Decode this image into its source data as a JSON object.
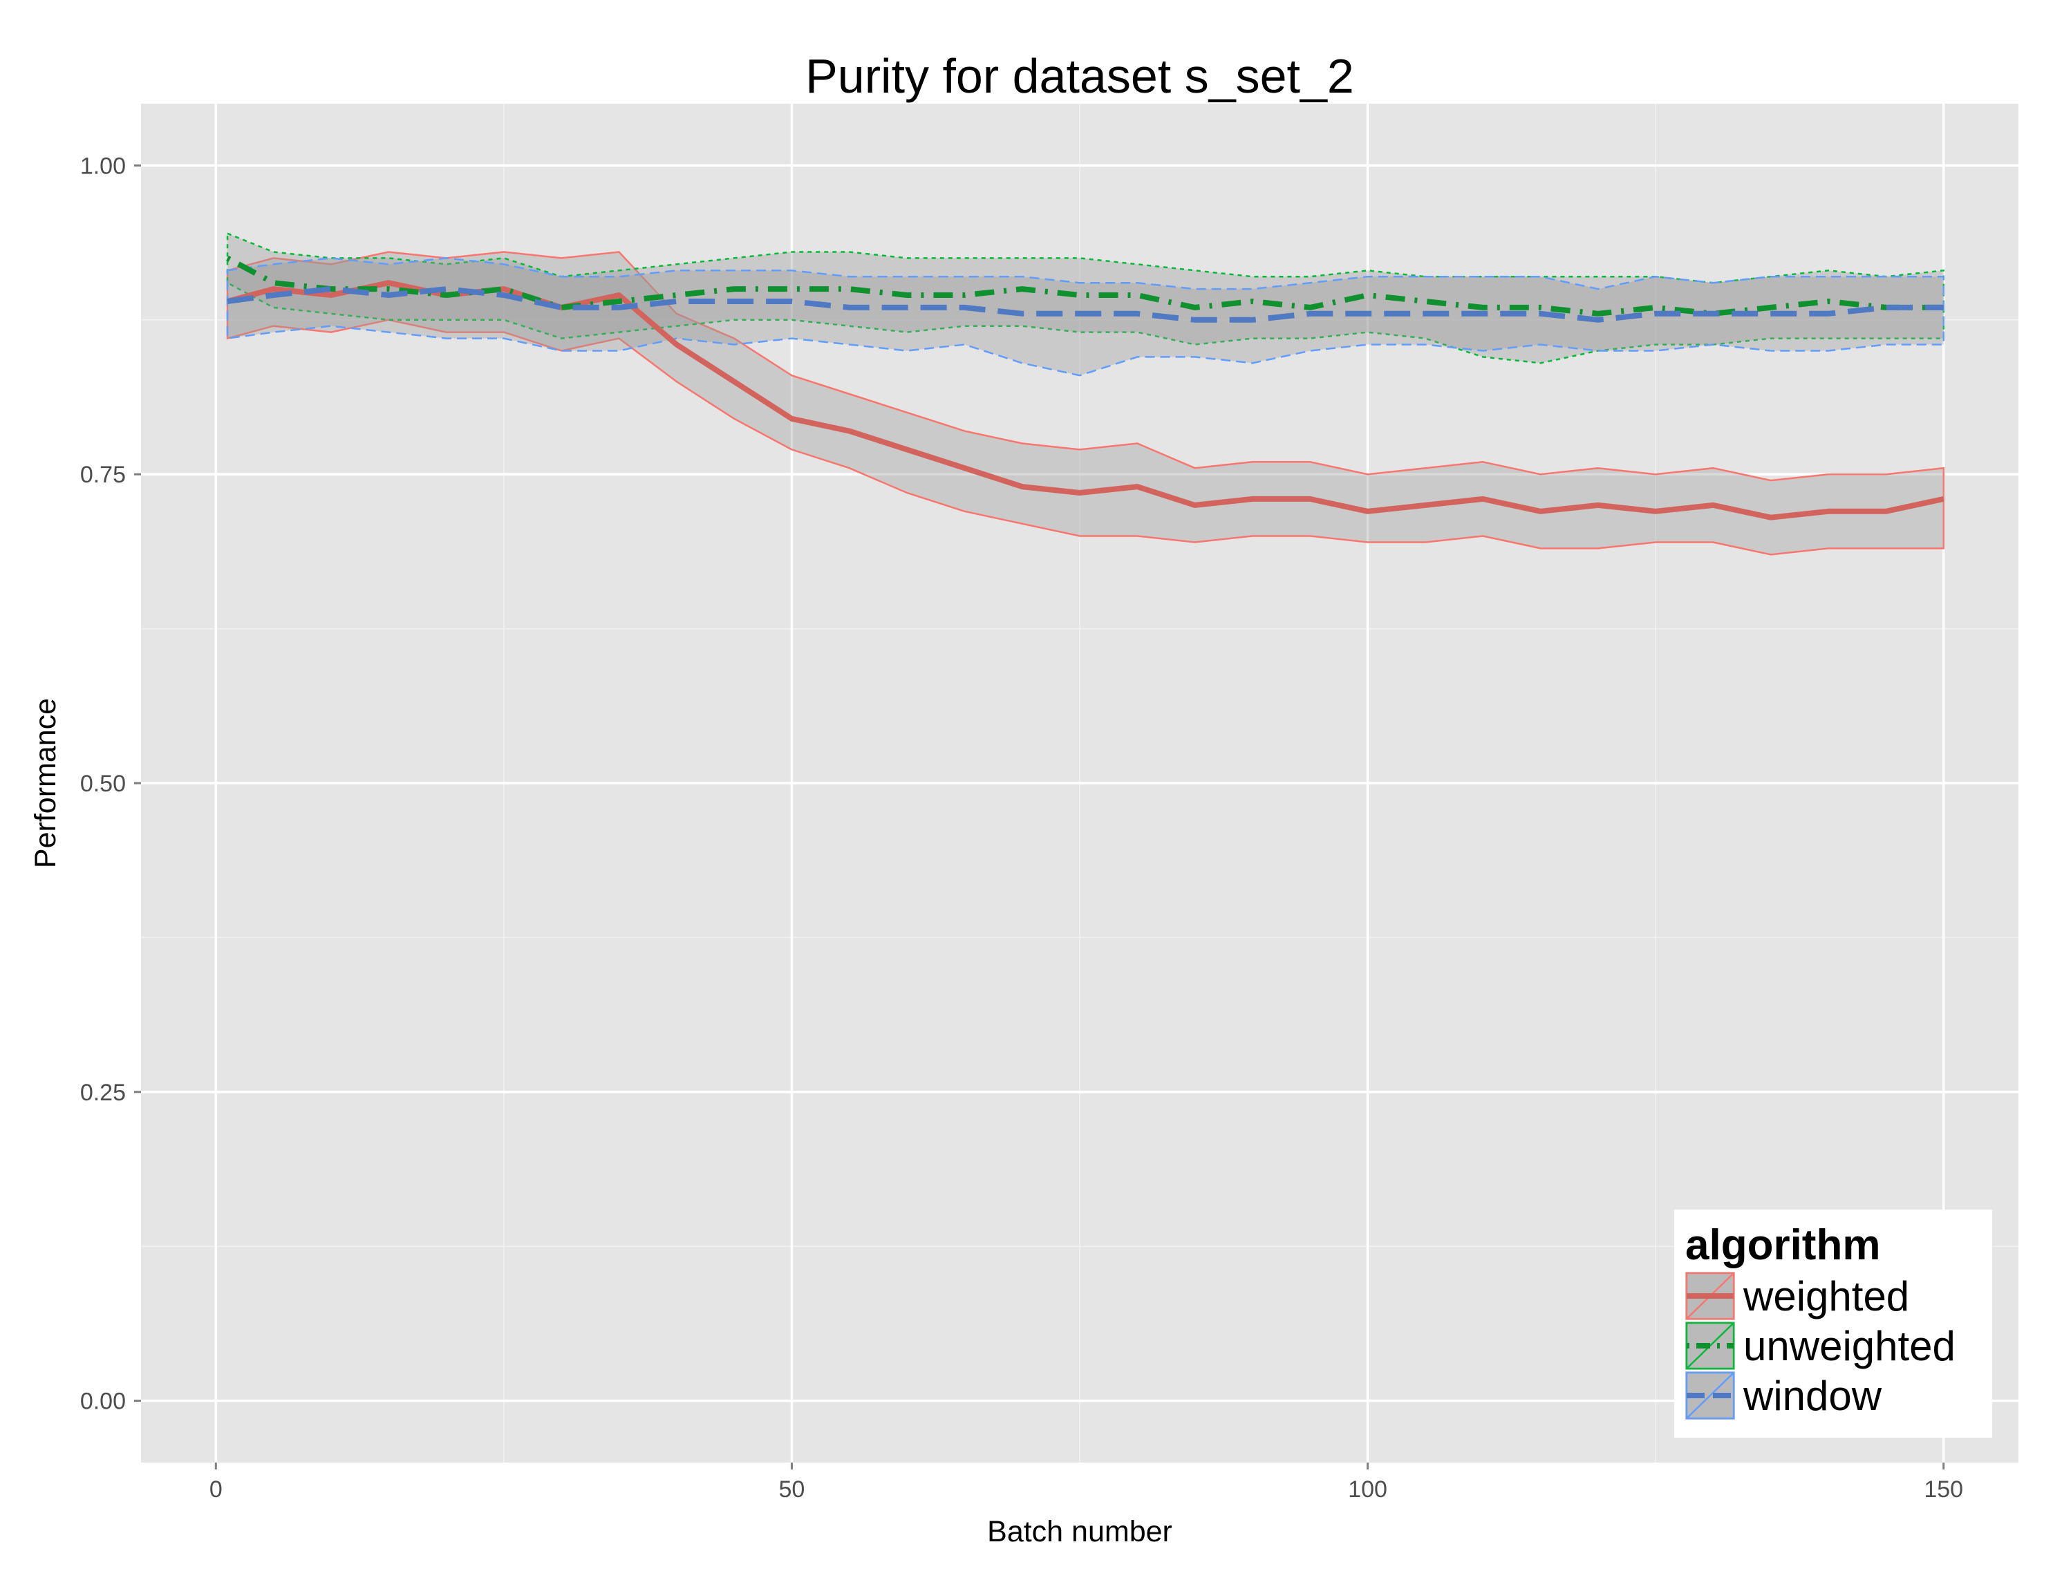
{
  "chart_data": {
    "type": "line",
    "title": "Purity for dataset s_set_2",
    "xlabel": "Batch number",
    "ylabel": "Performance",
    "xlim": [
      -6.5,
      156.5
    ],
    "ylim": [
      -0.05,
      1.05
    ],
    "x_ticks": [
      0,
      50,
      100,
      150
    ],
    "y_ticks": [
      0.0,
      0.25,
      0.5,
      0.75,
      1.0
    ],
    "x_tick_labels": [
      "0",
      "50",
      "100",
      "150"
    ],
    "y_tick_labels": [
      "0.00",
      "0.25",
      "0.50",
      "0.75",
      "1.00"
    ],
    "grid": true,
    "legend": {
      "title": "algorithm",
      "position": "bottom-right"
    },
    "series": [
      {
        "name": "weighted",
        "color": "#F8766D",
        "line_color": "#D3635D",
        "dash": "solid",
        "x": [
          1,
          5,
          10,
          15,
          20,
          25,
          30,
          35,
          40,
          45,
          50,
          55,
          60,
          65,
          70,
          75,
          80,
          85,
          90,
          95,
          100,
          105,
          110,
          115,
          120,
          125,
          130,
          135,
          140,
          145,
          150
        ],
        "mean": [
          0.89,
          0.9,
          0.895,
          0.905,
          0.895,
          0.9,
          0.885,
          0.895,
          0.855,
          0.825,
          0.795,
          0.785,
          0.77,
          0.755,
          0.74,
          0.735,
          0.74,
          0.725,
          0.73,
          0.73,
          0.72,
          0.725,
          0.73,
          0.72,
          0.725,
          0.72,
          0.725,
          0.715,
          0.72,
          0.72,
          0.73
        ],
        "lower": [
          0.86,
          0.87,
          0.865,
          0.875,
          0.865,
          0.865,
          0.85,
          0.86,
          0.825,
          0.795,
          0.77,
          0.755,
          0.735,
          0.72,
          0.71,
          0.7,
          0.7,
          0.695,
          0.7,
          0.7,
          0.695,
          0.695,
          0.7,
          0.69,
          0.69,
          0.695,
          0.695,
          0.685,
          0.69,
          0.69,
          0.69
        ],
        "upper": [
          0.915,
          0.925,
          0.92,
          0.93,
          0.925,
          0.93,
          0.925,
          0.93,
          0.88,
          0.86,
          0.83,
          0.815,
          0.8,
          0.785,
          0.775,
          0.77,
          0.775,
          0.755,
          0.76,
          0.76,
          0.75,
          0.755,
          0.76,
          0.75,
          0.755,
          0.75,
          0.755,
          0.745,
          0.75,
          0.75,
          0.755
        ]
      },
      {
        "name": "unweighted",
        "color": "#00BA38",
        "line_color": "#109130",
        "dash": "dotdash",
        "x": [
          1,
          5,
          10,
          15,
          20,
          25,
          30,
          35,
          40,
          45,
          50,
          55,
          60,
          65,
          70,
          75,
          80,
          85,
          90,
          95,
          100,
          105,
          110,
          115,
          120,
          125,
          130,
          135,
          140,
          145,
          150
        ],
        "mean": [
          0.925,
          0.905,
          0.9,
          0.9,
          0.895,
          0.9,
          0.885,
          0.89,
          0.895,
          0.9,
          0.9,
          0.9,
          0.895,
          0.895,
          0.9,
          0.895,
          0.895,
          0.885,
          0.89,
          0.885,
          0.895,
          0.89,
          0.885,
          0.885,
          0.88,
          0.885,
          0.88,
          0.885,
          0.89,
          0.885,
          0.885
        ],
        "lower": [
          0.905,
          0.885,
          0.88,
          0.875,
          0.875,
          0.875,
          0.86,
          0.865,
          0.87,
          0.875,
          0.875,
          0.87,
          0.865,
          0.87,
          0.87,
          0.865,
          0.865,
          0.855,
          0.86,
          0.86,
          0.865,
          0.86,
          0.845,
          0.84,
          0.85,
          0.855,
          0.855,
          0.86,
          0.86,
          0.86,
          0.86
        ],
        "upper": [
          0.945,
          0.93,
          0.925,
          0.925,
          0.92,
          0.925,
          0.91,
          0.915,
          0.92,
          0.925,
          0.93,
          0.93,
          0.925,
          0.925,
          0.925,
          0.925,
          0.92,
          0.915,
          0.91,
          0.91,
          0.915,
          0.91,
          0.91,
          0.91,
          0.91,
          0.91,
          0.905,
          0.91,
          0.915,
          0.91,
          0.915
        ]
      },
      {
        "name": "window",
        "color": "#619CFF",
        "line_color": "#5079C3",
        "dash": "longdash",
        "x": [
          1,
          5,
          10,
          15,
          20,
          25,
          30,
          35,
          40,
          45,
          50,
          55,
          60,
          65,
          70,
          75,
          80,
          85,
          90,
          95,
          100,
          105,
          110,
          115,
          120,
          125,
          130,
          135,
          140,
          145,
          150
        ],
        "mean": [
          0.89,
          0.895,
          0.9,
          0.895,
          0.9,
          0.895,
          0.885,
          0.885,
          0.89,
          0.89,
          0.89,
          0.885,
          0.885,
          0.885,
          0.88,
          0.88,
          0.88,
          0.875,
          0.875,
          0.88,
          0.88,
          0.88,
          0.88,
          0.88,
          0.875,
          0.88,
          0.88,
          0.88,
          0.88,
          0.885,
          0.885
        ],
        "lower": [
          0.86,
          0.865,
          0.87,
          0.865,
          0.86,
          0.86,
          0.85,
          0.85,
          0.86,
          0.855,
          0.86,
          0.855,
          0.85,
          0.855,
          0.84,
          0.83,
          0.845,
          0.845,
          0.84,
          0.85,
          0.855,
          0.855,
          0.85,
          0.855,
          0.85,
          0.85,
          0.855,
          0.85,
          0.85,
          0.855,
          0.855
        ],
        "upper": [
          0.915,
          0.92,
          0.925,
          0.92,
          0.925,
          0.92,
          0.91,
          0.91,
          0.915,
          0.915,
          0.915,
          0.91,
          0.91,
          0.91,
          0.91,
          0.905,
          0.905,
          0.9,
          0.9,
          0.905,
          0.91,
          0.91,
          0.91,
          0.91,
          0.9,
          0.91,
          0.905,
          0.91,
          0.91,
          0.91,
          0.91
        ]
      }
    ]
  }
}
